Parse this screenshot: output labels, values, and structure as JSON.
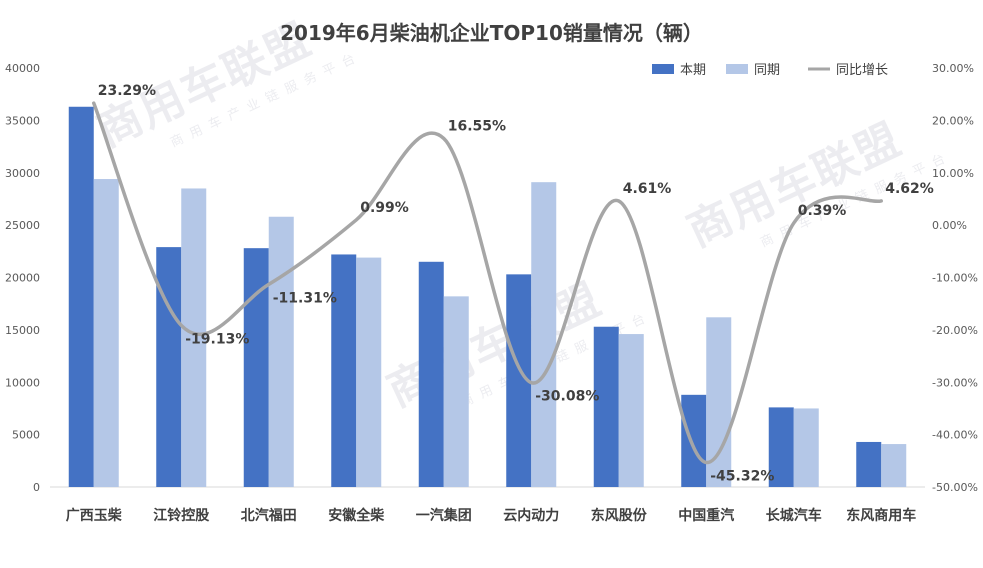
{
  "watermark": {
    "text": "商用车联盟",
    "subtext": "商用车产业链服务平台"
  },
  "chart_data": {
    "type": "bar",
    "title": "2019年6月柴油机企业TOP10销量情况（辆）",
    "categories": [
      "广西玉柴",
      "江铃控股",
      "北汽福田",
      "安徽全柴",
      "一汽集团",
      "云内动力",
      "东风股份",
      "中国重汽",
      "长城汽车",
      "东风商用车"
    ],
    "series": [
      {
        "name": "本期",
        "type": "bar",
        "color": "#4472C4",
        "values": [
          36300,
          22900,
          22800,
          22200,
          21500,
          20300,
          15300,
          8800,
          7600,
          4300
        ]
      },
      {
        "name": "同期",
        "type": "bar",
        "color": "#B4C7E7",
        "values": [
          29400,
          28500,
          25800,
          21900,
          18200,
          29100,
          14600,
          16200,
          7500,
          4100
        ]
      },
      {
        "name": "同比增长",
        "type": "line",
        "color": "#A6A6A6",
        "axis": "right",
        "values": [
          23.29,
          -19.13,
          -11.31,
          0.99,
          16.55,
          -30.08,
          4.61,
          -45.32,
          0.39,
          4.62
        ]
      }
    ],
    "data_labels": [
      "23.29%",
      "-19.13%",
      "-11.31%",
      "0.99%",
      "16.55%",
      "-30.08%",
      "4.61%",
      "-45.32%",
      "0.39%",
      "4.62%"
    ],
    "y_left": {
      "min": 0,
      "max": 40000,
      "ticks": [
        "0",
        "5000",
        "10000",
        "15000",
        "20000",
        "25000",
        "30000",
        "35000",
        "40000"
      ]
    },
    "y_right": {
      "min": -50,
      "max": 30,
      "ticks": [
        "-50.00%",
        "-40.00%",
        "-30.00%",
        "-20.00%",
        "-10.00%",
        "0.00%",
        "10.00%",
        "20.00%",
        "30.00%"
      ]
    },
    "legend": {
      "position": "top-right",
      "entries": [
        "本期",
        "同期",
        "同比增长"
      ]
    },
    "grid": false
  }
}
